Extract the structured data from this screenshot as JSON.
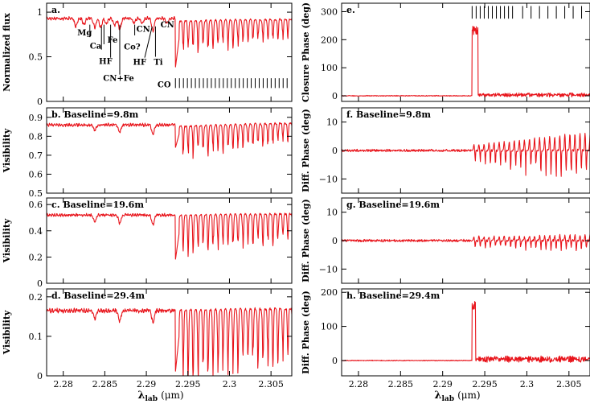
{
  "figure": {
    "xlabel_main": "λ",
    "xlabel_sub": "lab",
    "xlabel_unit": "(μm)"
  },
  "colors": {
    "curve": "#e8141b",
    "axes": "#000000"
  },
  "chart_data": [
    {
      "id": "a",
      "type": "line",
      "column": "left",
      "row": 0,
      "panel_label": "a.",
      "ylabel": "Normalized flux",
      "xlim": [
        2.278,
        2.3075
      ],
      "ylim": [
        0,
        1.1
      ],
      "yticks": [
        0,
        0.5,
        1
      ],
      "ytick_labels": [
        "0",
        "0.5",
        "1"
      ],
      "xticks": [
        2.28,
        2.285,
        2.29,
        2.295,
        2.3,
        2.305
      ],
      "xtick_labels": [],
      "series": {
        "before": 0.93,
        "noise": 0.012,
        "ripple": 0.02,
        "edge": 2.2935,
        "edge_min": 0.38,
        "after_top": 0.92,
        "after_depth": [
          0.35,
          0.18
        ],
        "line_spacing": 0.0006
      },
      "dips": [
        {
          "x": 2.2815,
          "d": 0.09
        },
        {
          "x": 2.2825,
          "d": 0.07
        },
        {
          "x": 2.2838,
          "d": 0.1
        },
        {
          "x": 2.2845,
          "d": 0.1
        },
        {
          "x": 2.2852,
          "d": 0.06
        },
        {
          "x": 2.2862,
          "d": 0.08
        },
        {
          "x": 2.2868,
          "d": 0.13
        },
        {
          "x": 2.2885,
          "d": 0.05
        },
        {
          "x": 2.2895,
          "d": 0.06
        },
        {
          "x": 2.2908,
          "d": 0.14
        },
        {
          "x": 2.2925,
          "d": 0.06
        }
      ],
      "annotations": [
        {
          "text": "Mg",
          "lx": 2.2817,
          "ly": 0.74,
          "x1": 2.2832,
          "y1": 0.86,
          "x2": 2.2832,
          "y2": 0.72
        },
        {
          "text": "Ca",
          "lx": 2.2832,
          "ly": 0.59,
          "x1": 2.2846,
          "y1": 0.84,
          "x2": 2.2846,
          "y2": 0.58
        },
        {
          "text": "Fe",
          "lx": 2.2853,
          "ly": 0.66,
          "x1": 2.2849,
          "y1": 0.86,
          "x2": 2.2849,
          "y2": 0.64
        },
        {
          "text": "HF",
          "lx": 2.2843,
          "ly": 0.42,
          "x1": 2.2857,
          "y1": 0.86,
          "x2": 2.2857,
          "y2": 0.49
        },
        {
          "text": "Co?",
          "lx": 2.2873,
          "ly": 0.58,
          "x1": 2.2886,
          "y1": 0.86,
          "x2": 2.2886,
          "y2": 0.74
        },
        {
          "text": "CN",
          "lx": 2.2888,
          "ly": 0.78,
          "x1": null,
          "y1": null,
          "x2": null,
          "y2": null
        },
        {
          "text": "CN+Fe",
          "lx": 2.2848,
          "ly": 0.23,
          "x1": 2.2868,
          "y1": 0.86,
          "x2": 2.2868,
          "y2": 0.3
        },
        {
          "text": "HF",
          "lx": 2.2884,
          "ly": 0.41,
          "x1": 2.2907,
          "y1": 0.84,
          "x2": 2.2898,
          "y2": 0.49
        },
        {
          "text": "Ti",
          "lx": 2.2909,
          "ly": 0.41,
          "x1": 2.2911,
          "y1": 0.84,
          "x2": 2.2911,
          "y2": 0.5
        },
        {
          "text": "CN",
          "lx": 2.2917,
          "ly": 0.83,
          "x1": null,
          "y1": null,
          "x2": null,
          "y2": null
        }
      ],
      "co_marks": {
        "label": "CO",
        "start": 2.2935,
        "step": 0.00048,
        "end": 2.3072,
        "y0": 0.15,
        "y1": 0.26
      }
    },
    {
      "id": "b",
      "type": "line",
      "column": "left",
      "row": 1,
      "panel_label": "b. Baseline=9.8m",
      "ylabel": "Visibility",
      "xlim": [
        2.278,
        2.3075
      ],
      "ylim": [
        0.5,
        0.95
      ],
      "yticks": [
        0.5,
        0.6,
        0.7,
        0.8,
        0.9
      ],
      "ytick_labels": [
        "0.5",
        "0.6",
        "0.7",
        "0.8",
        "0.9"
      ],
      "xticks": [
        2.28,
        2.285,
        2.29,
        2.295,
        2.3,
        2.305
      ],
      "xtick_labels": [],
      "series": {
        "before": 0.86,
        "noise": 0.006,
        "ripple": 0.008,
        "edge": 2.2935,
        "edge_min": 0.74,
        "after_top": 0.87,
        "after_depth": [
          0.15,
          0.09
        ],
        "line_spacing": 0.0006
      },
      "dips": [
        {
          "x": 2.2838,
          "d": 0.03
        },
        {
          "x": 2.2868,
          "d": 0.04
        },
        {
          "x": 2.2908,
          "d": 0.05
        }
      ]
    },
    {
      "id": "c",
      "type": "line",
      "column": "left",
      "row": 2,
      "panel_label": "c. Baseline=19.6m",
      "ylabel": "Visibility",
      "xlim": [
        2.278,
        2.3075
      ],
      "ylim": [
        0,
        0.65
      ],
      "yticks": [
        0,
        0.2,
        0.4,
        0.6
      ],
      "ytick_labels": [
        "0",
        "0.2",
        "0.4",
        "0.6"
      ],
      "xticks": [
        2.28,
        2.285,
        2.29,
        2.295,
        2.3,
        2.305
      ],
      "xtick_labels": [],
      "series": {
        "before": 0.52,
        "noise": 0.008,
        "ripple": 0.01,
        "edge": 2.2935,
        "edge_min": 0.18,
        "after_top": 0.53,
        "after_depth": [
          0.27,
          0.18
        ],
        "line_spacing": 0.0006
      },
      "dips": [
        {
          "x": 2.2838,
          "d": 0.05
        },
        {
          "x": 2.2868,
          "d": 0.06
        },
        {
          "x": 2.2908,
          "d": 0.07
        }
      ]
    },
    {
      "id": "d",
      "type": "line",
      "column": "left",
      "row": 3,
      "panel_label": "d. Baseline=29.4m",
      "ylabel": "Visibility",
      "xlim": [
        2.278,
        2.3075
      ],
      "ylim": [
        0,
        0.22
      ],
      "yticks": [
        0,
        0.1,
        0.2
      ],
      "ytick_labels": [
        "0",
        "0.1",
        "0.2"
      ],
      "xticks": [
        2.28,
        2.285,
        2.29,
        2.295,
        2.3,
        2.305
      ],
      "xtick_labels": [
        "2.28",
        "2.285",
        "2.29",
        "2.295",
        "2.3",
        "2.305"
      ],
      "series": {
        "before": 0.165,
        "noise": 0.004,
        "ripple": 0.005,
        "edge": 2.2935,
        "edge_min": 0.01,
        "after_top": 0.17,
        "after_depth": [
          0.17,
          0.11
        ],
        "line_spacing": 0.0006
      },
      "dips": [
        {
          "x": 2.2838,
          "d": 0.02
        },
        {
          "x": 2.2868,
          "d": 0.025
        },
        {
          "x": 2.2908,
          "d": 0.03
        }
      ]
    },
    {
      "id": "e",
      "type": "line",
      "column": "right",
      "row": 0,
      "panel_label": "e.",
      "ylabel": "Closure Phase (deg)",
      "xlim": [
        2.278,
        2.3075
      ],
      "ylim": [
        -20,
        330
      ],
      "yticks": [
        0,
        100,
        200,
        300
      ],
      "ytick_labels": [
        "0",
        "100",
        "200",
        "300"
      ],
      "xticks": [
        2.28,
        2.285,
        2.29,
        2.295,
        2.3,
        2.305
      ],
      "xtick_labels": [],
      "series": {
        "before": 0,
        "noise": 1.2,
        "ripple": 0.6,
        "edge": 2.2935,
        "spike": 250,
        "spike_width": 0.0007,
        "after_noise": 3.0,
        "after_top": 3
      },
      "co_marks": {
        "label": "",
        "start": 2.2935,
        "step": 0.00048,
        "end": 2.2985,
        "y0": 275,
        "y1": 320,
        "extra": [
          2.2995,
          2.3005,
          2.3015,
          2.3025,
          2.3035,
          2.3045,
          2.3055,
          2.3065
        ]
      }
    },
    {
      "id": "f",
      "type": "line",
      "column": "right",
      "row": 1,
      "panel_label": "f. Baseline=9.8m",
      "ylabel": "Diff. Phase (deg)",
      "xlim": [
        2.278,
        2.3075
      ],
      "ylim": [
        -15,
        15
      ],
      "yticks": [
        -10,
        0,
        10
      ],
      "ytick_labels": [
        "−10",
        "0",
        "10"
      ],
      "xticks": [
        2.28,
        2.285,
        2.29,
        2.295,
        2.3,
        2.305
      ],
      "xtick_labels": [],
      "series": {
        "before": 0,
        "noise": 0.35,
        "ripple": 0.25,
        "edge": 2.2935,
        "after_amp": [
          3.5,
          10.5
        ],
        "line_spacing": 0.0006
      }
    },
    {
      "id": "g",
      "type": "line",
      "column": "right",
      "row": 2,
      "panel_label": "g. Baseline=19.6m",
      "ylabel": "Diff. Phase (deg)",
      "xlim": [
        2.278,
        2.3075
      ],
      "ylim": [
        -15,
        15
      ],
      "yticks": [
        -10,
        0,
        10
      ],
      "ytick_labels": [
        "−10",
        "0",
        "10"
      ],
      "xticks": [
        2.28,
        2.285,
        2.29,
        2.295,
        2.3,
        2.305
      ],
      "xtick_labels": [],
      "series": {
        "before": 0,
        "noise": 0.35,
        "ripple": 0.25,
        "edge": 2.2935,
        "after_amp": [
          2.5,
          3.5
        ],
        "line_spacing": 0.0006
      }
    },
    {
      "id": "h",
      "type": "line",
      "column": "right",
      "row": 3,
      "panel_label": "h. Baseline=29.4m",
      "ylabel": "Diff. Phase (deg)",
      "xlim": [
        2.278,
        2.3075
      ],
      "ylim": [
        -45,
        210
      ],
      "yticks": [
        0,
        100,
        200
      ],
      "ytick_labels": [
        "0",
        "100",
        "200"
      ],
      "xticks": [
        2.28,
        2.285,
        2.29,
        2.295,
        2.3,
        2.305
      ],
      "xtick_labels": [
        "2.28",
        "2.285",
        "2.29",
        "2.295",
        "2.3",
        "2.305"
      ],
      "series": {
        "before": 0,
        "noise": 0.9,
        "ripple": 0.6,
        "edge": 2.2935,
        "spike": 175,
        "spike_width": 0.0004,
        "after_noise": 4,
        "after_top": 4
      }
    }
  ]
}
